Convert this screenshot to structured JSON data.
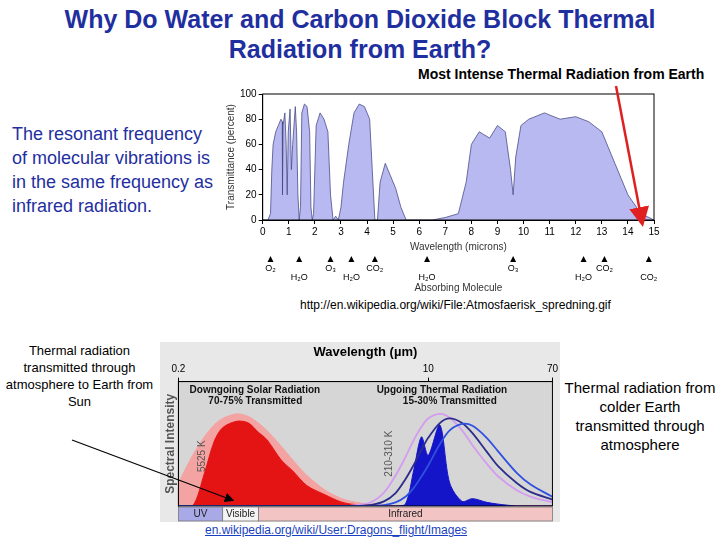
{
  "title": "Why Do Water and Carbon Dioxide Block Thermal Radiation from Earth?",
  "top_note": "Most Intense Thermal Radiation from Earth",
  "left_note": "The resonant frequency of molecular vibrations is in the same frequency as infrared radiation.",
  "bottom_left_note": "Thermal radiation transmitted through atmosphere to Earth from Sun",
  "bottom_right_note": "Thermal radiation from colder Earth transmitted through atmosphere",
  "chart_data": [
    {
      "type": "area",
      "x_label": "Wavelength (microns)",
      "y_label": "Transmittance (percent)",
      "color": "#b9b9f2",
      "x": [
        0,
        0.2,
        0.3,
        0.35,
        0.4,
        0.5,
        0.6,
        0.7,
        0.75,
        0.76,
        0.78,
        0.85,
        0.9,
        0.94,
        0.98,
        1.05,
        1.1,
        1.15,
        1.25,
        1.3,
        1.35,
        1.4,
        1.45,
        1.5,
        1.6,
        1.7,
        1.8,
        1.85,
        1.9,
        1.95,
        2.05,
        2.2,
        2.35,
        2.5,
        2.6,
        2.7,
        2.8,
        2.9,
        3.0,
        3.1,
        3.3,
        3.5,
        3.7,
        3.9,
        4.1,
        4.2,
        4.3,
        4.4,
        4.5,
        4.7,
        4.9,
        5.1,
        5.3,
        5.5,
        6.0,
        6.5,
        7.0,
        7.5,
        7.8,
        8.0,
        8.3,
        8.7,
        9.0,
        9.3,
        9.5,
        9.6,
        9.7,
        9.9,
        10.2,
        10.8,
        11.4,
        12.0,
        12.5,
        13.0,
        13.5,
        14.0,
        14.5,
        15
      ],
      "values": [
        0,
        0,
        5,
        40,
        60,
        70,
        75,
        80,
        78,
        20,
        75,
        85,
        60,
        20,
        70,
        88,
        40,
        60,
        90,
        70,
        20,
        0,
        10,
        85,
        92,
        90,
        70,
        10,
        0,
        5,
        75,
        85,
        80,
        70,
        20,
        0,
        3,
        0,
        10,
        30,
        60,
        85,
        92,
        90,
        80,
        40,
        0,
        0,
        30,
        45,
        35,
        25,
        10,
        0,
        0,
        0,
        2,
        5,
        30,
        60,
        70,
        65,
        75,
        70,
        40,
        20,
        50,
        75,
        80,
        85,
        80,
        82,
        78,
        70,
        45,
        20,
        5,
        0
      ],
      "xlim": [
        0,
        15
      ],
      "xticks": [
        0,
        1,
        2,
        3,
        4,
        5,
        6,
        7,
        8,
        9,
        10,
        11,
        12,
        13,
        14,
        15
      ],
      "ylim": [
        0,
        100
      ],
      "yticks": [
        0,
        20,
        40,
        60,
        80,
        100
      ],
      "grid": false,
      "molecules": [
        {
          "label": "O₂",
          "x": 0.3
        },
        {
          "label": "H₂O",
          "x": 1.4
        },
        {
          "label": "O₃",
          "x": 2.6
        },
        {
          "label": "H₂O",
          "x": 3.4
        },
        {
          "label": "CO₂",
          "x": 4.3
        },
        {
          "label": "H₂O",
          "x": 6.3
        },
        {
          "label": "O₃",
          "x": 9.6
        },
        {
          "label": "H₂O",
          "x": 12.3
        },
        {
          "label": "CO₂",
          "x": 13.1
        },
        {
          "label": "CO₂",
          "x": 14.8
        }
      ],
      "molecules_title": "Absorbing Molecule",
      "source": "http://en.wikipedia.org/wiki/File:Atmosfaerisk_spredning.gif"
    },
    {
      "type": "area",
      "x_label": "Wavelength (µm)",
      "y_label": "Spectral Intensity",
      "log": "x",
      "x": [
        0.2,
        0.25,
        0.3,
        0.35,
        0.4,
        0.5,
        0.6,
        0.7,
        0.8,
        1,
        1.2,
        1.5,
        2,
        2.5,
        3,
        4,
        5,
        6,
        7,
        8,
        9,
        10,
        12,
        14,
        17,
        20,
        25,
        30,
        40,
        50,
        70
      ],
      "xlim": [
        0.2,
        70
      ],
      "xticks": [
        0.2,
        10,
        70
      ],
      "ylim": [
        0,
        1.35
      ],
      "tick_labels": "x",
      "grid": false,
      "series": [
        {
          "type": "area",
          "color": "#f4a3a3",
          "values": [
            0.25,
            0.55,
            0.75,
            0.88,
            0.95,
            1.0,
            0.97,
            0.9,
            0.82,
            0.65,
            0.5,
            0.33,
            0.17,
            0.09,
            0.05,
            0.02,
            0.01,
            0,
            0,
            0,
            0,
            0,
            0,
            0,
            0,
            0,
            0,
            0,
            0,
            0,
            0
          ]
        },
        {
          "type": "area",
          "color": "#e41414",
          "values": [
            0,
            0,
            0.35,
            0.7,
            0.85,
            0.92,
            0.9,
            0.8,
            0.72,
            0.5,
            0.38,
            0.22,
            0.12,
            0.05,
            0.02,
            0.01,
            0,
            0,
            0,
            0,
            0,
            0,
            0,
            0,
            0,
            0,
            0,
            0,
            0,
            0,
            0
          ]
        },
        {
          "type": "area",
          "color": "#1414c8",
          "values": [
            0,
            0,
            0,
            0,
            0,
            0,
            0,
            0,
            0,
            0,
            0,
            0,
            0,
            0,
            0,
            0,
            0,
            0,
            0.02,
            0.4,
            0.75,
            0.55,
            0.88,
            0.25,
            0.05,
            0.08,
            0.04,
            0.02,
            0,
            0,
            0
          ]
        },
        {
          "type": "line",
          "color": "#d49cf0",
          "values": [
            0,
            0,
            0,
            0,
            0,
            0,
            0,
            0,
            0,
            0,
            0,
            0,
            0,
            0,
            0.005,
            0.035,
            0.145,
            0.33,
            0.53,
            0.72,
            0.86,
            0.95,
            1.0,
            0.96,
            0.82,
            0.66,
            0.46,
            0.32,
            0.17,
            0.1,
            0.04
          ]
        },
        {
          "type": "line",
          "color": "#2c2c8c",
          "values": [
            0,
            0,
            0,
            0,
            0,
            0,
            0,
            0,
            0,
            0,
            0,
            0,
            0,
            0,
            0,
            0.01,
            0.05,
            0.14,
            0.29,
            0.45,
            0.61,
            0.74,
            0.9,
            0.95,
            0.9,
            0.79,
            0.59,
            0.43,
            0.25,
            0.15,
            0.07
          ]
        },
        {
          "type": "line",
          "color": "#3050e0",
          "values": [
            0,
            0,
            0,
            0,
            0,
            0,
            0,
            0,
            0,
            0,
            0,
            0,
            0,
            0,
            0,
            0,
            0.01,
            0.04,
            0.1,
            0.2,
            0.32,
            0.44,
            0.67,
            0.82,
            0.89,
            0.87,
            0.74,
            0.59,
            0.36,
            0.23,
            0.1
          ]
        }
      ],
      "texts": [
        "Downgoing Solar Radiation",
        "70-75% Transmitted",
        "Upgoing Thermal Radiation",
        "15-30% Transmitted",
        "5525 K",
        "210-310 K"
      ],
      "bands": [
        {
          "label": "UV",
          "from": 0.2,
          "to": 0.4,
          "color": "#a9a9e8"
        },
        {
          "label": "Visible",
          "from": 0.4,
          "to": 0.7,
          "color": "#f4f4f4"
        },
        {
          "label": "Infrared",
          "from": 0.7,
          "to": 70,
          "color": "#f2c4c4"
        }
      ],
      "source": "en.wikipedia.org/wiki/User:Dragons_flight/Images"
    }
  ]
}
